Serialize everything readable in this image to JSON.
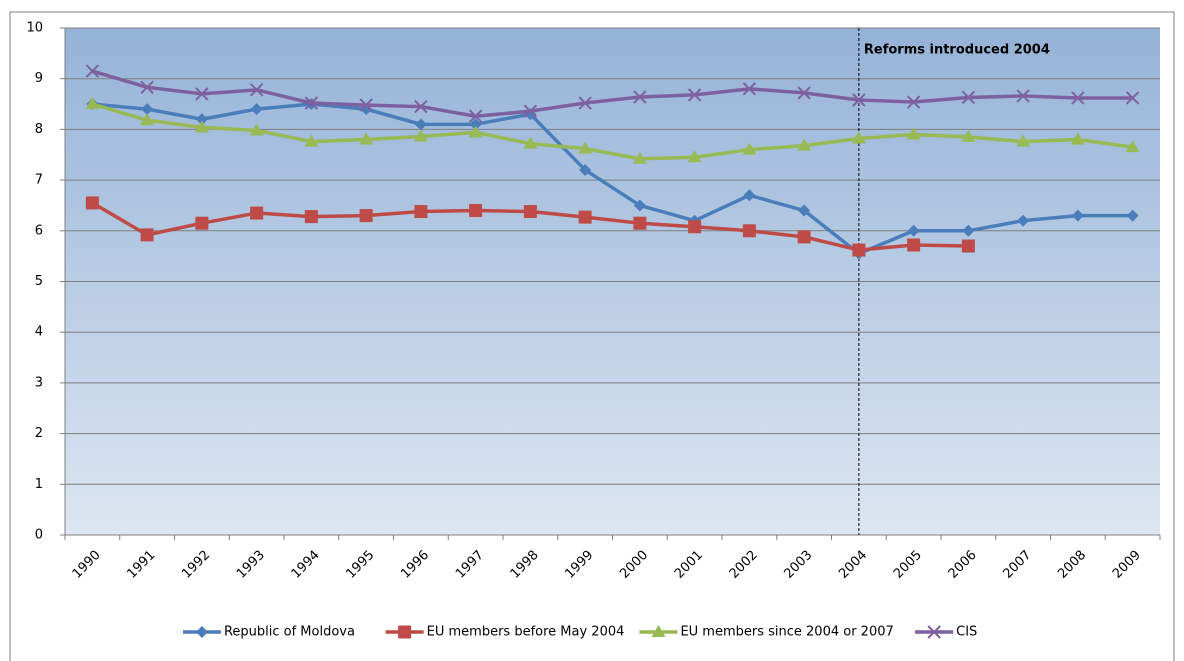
{
  "chart_data": {
    "type": "line",
    "categories": [
      "1990",
      "1991",
      "1992",
      "1993",
      "1994",
      "1995",
      "1996",
      "1997",
      "1998",
      "1999",
      "2000",
      "2001",
      "2002",
      "2003",
      "2004",
      "2005",
      "2006",
      "2007",
      "2008",
      "2009"
    ],
    "series": [
      {
        "name": "Republic of Moldova",
        "color": "#4a7ebb",
        "marker": "diamond",
        "values": [
          8.5,
          8.4,
          8.2,
          8.4,
          8.5,
          8.4,
          8.1,
          8.1,
          8.3,
          7.2,
          6.5,
          6.2,
          6.7,
          6.4,
          5.55,
          6.0,
          6.0,
          6.2,
          6.3,
          6.3
        ]
      },
      {
        "name": "EU members before May 2004",
        "color": "#be4b48",
        "marker": "square",
        "values": [
          6.55,
          5.92,
          6.15,
          6.35,
          6.28,
          6.3,
          6.38,
          6.4,
          6.38,
          6.27,
          6.15,
          6.08,
          6.0,
          5.88,
          5.62,
          5.72,
          5.7,
          null,
          null,
          null
        ]
      },
      {
        "name": "EU members since 2004 or 2007",
        "color": "#98b954",
        "marker": "triangle",
        "values": [
          8.5,
          8.18,
          8.04,
          7.98,
          7.76,
          7.8,
          7.86,
          7.94,
          7.72,
          7.62,
          7.42,
          7.45,
          7.6,
          7.68,
          7.82,
          7.9,
          7.85,
          7.76,
          7.8,
          7.65
        ]
      },
      {
        "name": "CIS",
        "color": "#7d60a0",
        "marker": "x",
        "values": [
          9.15,
          8.83,
          8.7,
          8.78,
          8.52,
          8.48,
          8.45,
          8.26,
          8.36,
          8.52,
          8.64,
          8.68,
          8.8,
          8.72,
          8.58,
          8.54,
          8.63,
          8.66,
          8.62,
          8.62
        ]
      }
    ],
    "ylim": [
      0,
      10
    ],
    "yticks": [
      0,
      1,
      2,
      3,
      4,
      5,
      6,
      7,
      8,
      9,
      10
    ],
    "grid": true,
    "legend": "bottom",
    "annotation": {
      "text": "Reforms introduced 2004",
      "x": "2004"
    }
  }
}
